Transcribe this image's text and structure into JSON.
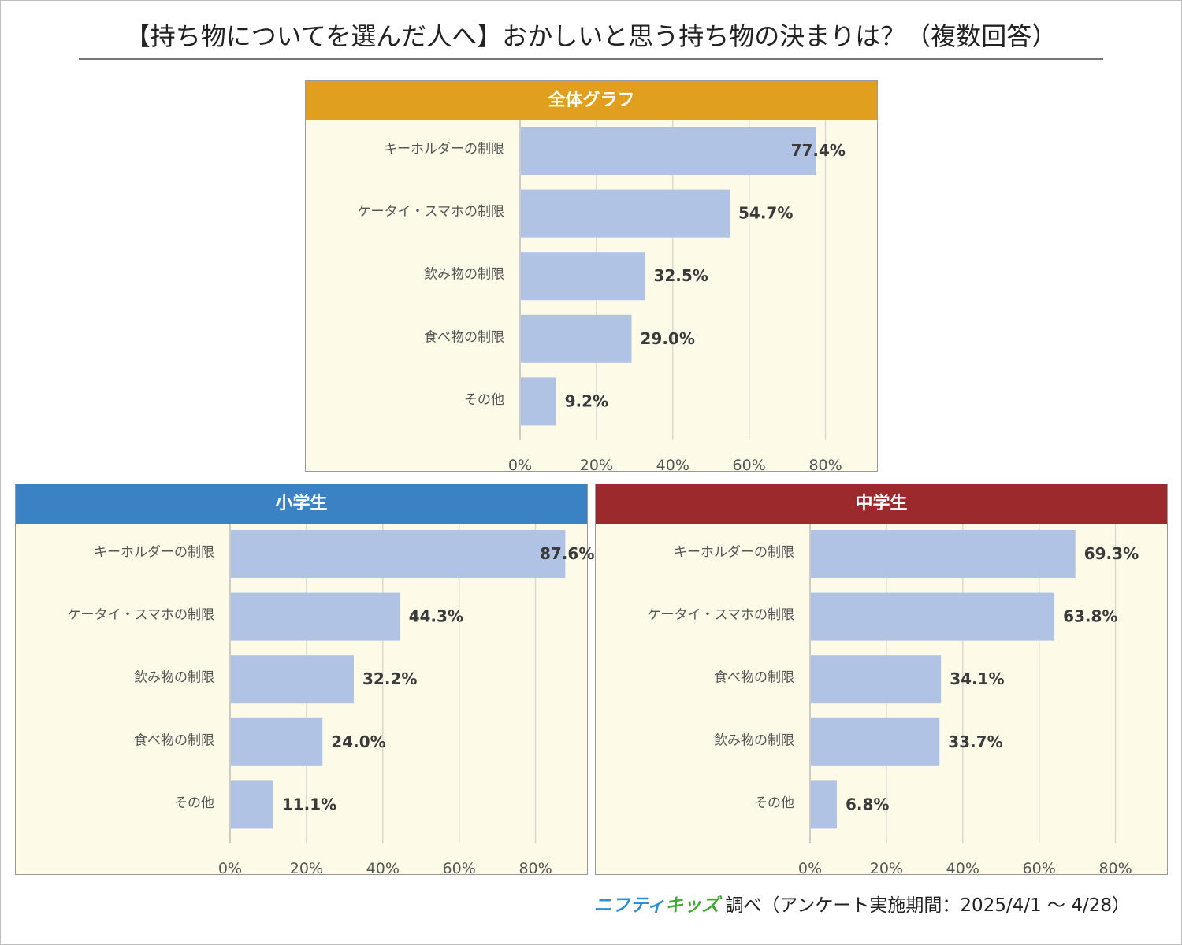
{
  "title": "【持ち物についてを選んだ人へ】おかしいと思う持ち物の決まりは？（複数回答）",
  "footer": {
    "logo_part1": "ニフティ",
    "logo_part2": "キッズ",
    "text": "調べ（アンケート実施期間：2025/4/1 ～ 4/28）"
  },
  "colors": {
    "bar": "#b0c3e4",
    "overall_header": "#e09f1f",
    "elementary_header": "#3a82c4",
    "junior_header": "#9c2a2c",
    "panel_bg": "#fdfbe8",
    "grid": "#d9d9d0"
  },
  "chart_data": [
    {
      "type": "bar",
      "orientation": "horizontal",
      "title": "全体グラフ",
      "categories": [
        "キーホルダーの制限",
        "ケータイ・スマホの制限",
        "飲み物の制限",
        "食べ物の制限",
        "その他"
      ],
      "values": [
        77.4,
        54.7,
        32.5,
        29.0,
        9.2
      ],
      "value_labels": [
        "77.4%",
        "54.7%",
        "32.5%",
        "29.0%",
        "9.2%"
      ],
      "xlim": [
        0,
        90
      ],
      "ticks": [
        0,
        20,
        40,
        60,
        80
      ],
      "tick_labels": [
        "0%",
        "20%",
        "40%",
        "60%",
        "80%"
      ],
      "grid": true
    },
    {
      "type": "bar",
      "orientation": "horizontal",
      "title": "小学生",
      "categories": [
        "キーホルダーの制限",
        "ケータイ・スマホの制限",
        "飲み物の制限",
        "食べ物の制限",
        "その他"
      ],
      "values": [
        87.6,
        44.3,
        32.2,
        24.0,
        11.1
      ],
      "value_labels": [
        "87.6%",
        "44.3%",
        "32.2%",
        "24.0%",
        "11.1%"
      ],
      "xlim": [
        0,
        90
      ],
      "ticks": [
        0,
        20,
        40,
        60,
        80
      ],
      "tick_labels": [
        "0%",
        "20%",
        "40%",
        "60%",
        "80%"
      ],
      "grid": true
    },
    {
      "type": "bar",
      "orientation": "horizontal",
      "title": "中学生",
      "categories": [
        "キーホルダーの制限",
        "ケータイ・スマホの制限",
        "食べ物の制限",
        "飲み物の制限",
        "その他"
      ],
      "values": [
        69.3,
        63.8,
        34.1,
        33.7,
        6.8
      ],
      "value_labels": [
        "69.3%",
        "63.8%",
        "34.1%",
        "33.7%",
        "6.8%"
      ],
      "xlim": [
        0,
        90
      ],
      "ticks": [
        0,
        20,
        40,
        60,
        80
      ],
      "tick_labels": [
        "0%",
        "20%",
        "40%",
        "60%",
        "80%"
      ],
      "grid": true
    }
  ]
}
